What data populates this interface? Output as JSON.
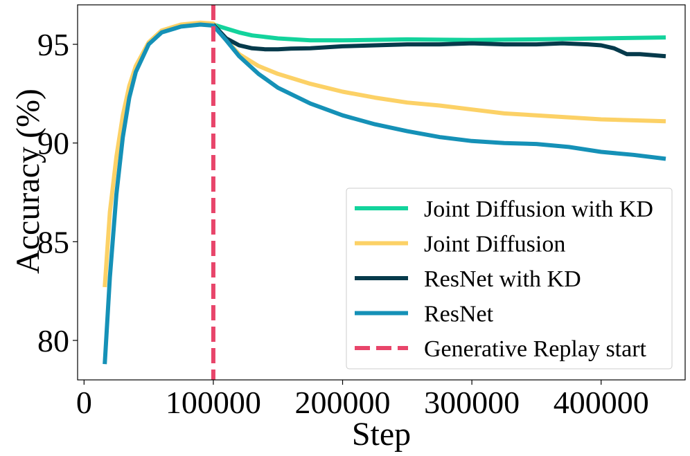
{
  "chart_data": {
    "type": "line",
    "title": "",
    "xlabel": "Step",
    "ylabel": "Accuracy (%)",
    "xlim": [
      -5000,
      465000
    ],
    "ylim": [
      78.0,
      97.0
    ],
    "xticks": [
      0,
      100000,
      200000,
      300000,
      400000
    ],
    "xtick_labels": [
      "0",
      "100000",
      "200000",
      "300000",
      "400000"
    ],
    "yticks": [
      80,
      85,
      90,
      95
    ],
    "ytick_labels": [
      "80",
      "85",
      "90",
      "95"
    ],
    "grid": false,
    "legend_position": "bottom-right",
    "vline": {
      "x": 100000,
      "label": "Generative Replay start",
      "color": "#e8456a",
      "style": "dashed"
    },
    "series": [
      {
        "name": "Joint Diffusion with KD",
        "color": "#13d39c",
        "x": [
          100000,
          110000,
          120000,
          130000,
          150000,
          175000,
          200000,
          250000,
          300000,
          350000,
          400000,
          450000
        ],
        "y": [
          96.0,
          95.8,
          95.6,
          95.45,
          95.3,
          95.2,
          95.2,
          95.25,
          95.22,
          95.25,
          95.3,
          95.35
        ]
      },
      {
        "name": "Joint Diffusion",
        "color": "#fcd166",
        "x": [
          16000,
          20000,
          25000,
          30000,
          35000,
          40000,
          50000,
          60000,
          75000,
          90000,
          100000,
          110000,
          120000,
          135000,
          150000,
          175000,
          200000,
          225000,
          250000,
          275000,
          300000,
          325000,
          350000,
          375000,
          400000,
          425000,
          450000
        ],
        "y": [
          82.7,
          86.5,
          89.3,
          91.4,
          92.9,
          93.9,
          95.1,
          95.7,
          96.0,
          96.1,
          96.05,
          95.2,
          94.5,
          93.9,
          93.5,
          93.0,
          92.6,
          92.3,
          92.05,
          91.9,
          91.7,
          91.5,
          91.4,
          91.3,
          91.2,
          91.15,
          91.1
        ]
      },
      {
        "name": "ResNet with KD",
        "color": "#063a4b",
        "x": [
          100000,
          110000,
          120000,
          130000,
          140000,
          150000,
          160000,
          175000,
          200000,
          225000,
          250000,
          275000,
          300000,
          325000,
          350000,
          370000,
          390000,
          400000,
          410000,
          420000,
          430000,
          440000,
          450000
        ],
        "y": [
          96.0,
          95.3,
          94.95,
          94.8,
          94.75,
          94.75,
          94.78,
          94.8,
          94.9,
          94.95,
          95.0,
          95.0,
          95.05,
          95.0,
          95.0,
          95.05,
          95.0,
          94.95,
          94.8,
          94.5,
          94.5,
          94.45,
          94.4
        ]
      },
      {
        "name": "ResNet",
        "color": "#1591b7",
        "x": [
          16000,
          20000,
          25000,
          30000,
          35000,
          40000,
          50000,
          60000,
          75000,
          90000,
          100000,
          110000,
          120000,
          135000,
          150000,
          175000,
          200000,
          225000,
          250000,
          275000,
          300000,
          325000,
          350000,
          375000,
          400000,
          425000,
          450000
        ],
        "y": [
          78.8,
          83.2,
          87.4,
          90.3,
          92.3,
          93.6,
          95.0,
          95.6,
          95.9,
          96.0,
          95.95,
          95.2,
          94.4,
          93.5,
          92.8,
          92.0,
          91.4,
          90.95,
          90.6,
          90.3,
          90.1,
          90.0,
          89.95,
          89.8,
          89.55,
          89.4,
          89.2
        ]
      }
    ]
  }
}
